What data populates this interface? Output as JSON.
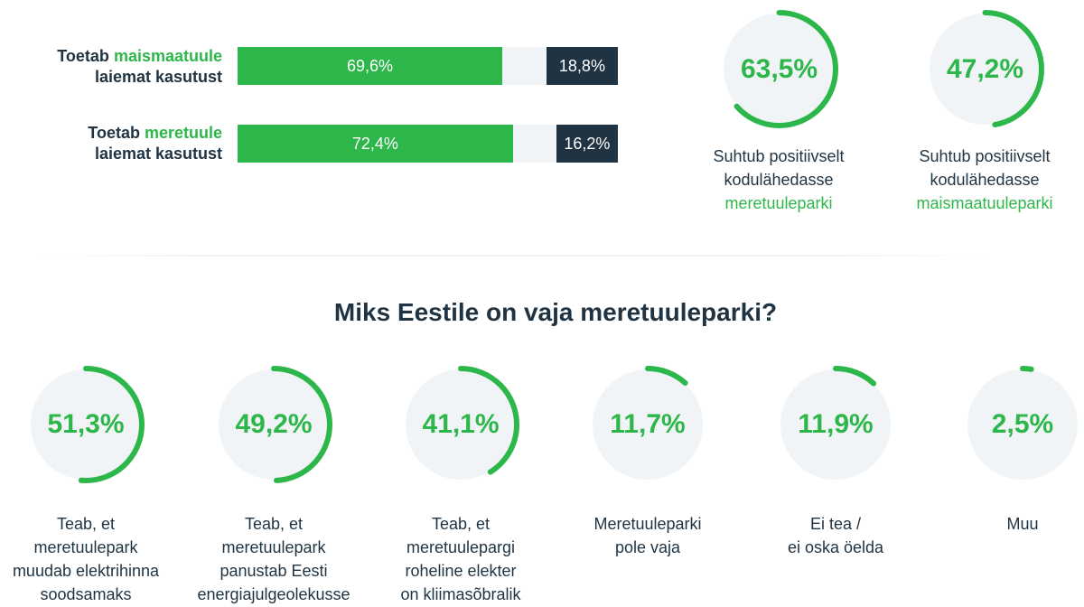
{
  "colors": {
    "accent": "#2db74b",
    "dark": "#1f3342",
    "track": "#f1f4f6"
  },
  "top_bars": [
    {
      "label_pre": "Toetab ",
      "label_hl": "maismaatuule",
      "label_post": "laiemat kasutust",
      "positive": 69.6,
      "negative": 18.8,
      "positive_label": "69,6%",
      "negative_label": "18,8%"
    },
    {
      "label_pre": "Toetab ",
      "label_hl": "meretuule",
      "label_post": "laiemat kasutust",
      "positive": 72.4,
      "negative": 16.2,
      "positive_label": "72,4%",
      "negative_label": "16,2%"
    }
  ],
  "top_rings": [
    {
      "value": 63.5,
      "value_label": "63,5%",
      "caption_1": "Suhtub positiivselt",
      "caption_2": "kodulähedasse",
      "caption_hl": "meretuuleparki"
    },
    {
      "value": 47.2,
      "value_label": "47,2%",
      "caption_1": "Suhtub positiivselt",
      "caption_2": "kodulähedasse",
      "caption_hl": "maismaatuuleparki"
    }
  ],
  "section_title": "Miks Eestile on vaja meretuuleparki?",
  "bottom_rings": [
    {
      "value": 51.3,
      "value_label": "51,3%",
      "caption": [
        "Teab, et",
        "meretuulepark",
        "muudab elektrihinna",
        "soodsamaks"
      ]
    },
    {
      "value": 49.2,
      "value_label": "49,2%",
      "caption": [
        "Teab, et",
        "meretuulepark",
        "panustab Eesti",
        "energiajulgeolekusse"
      ]
    },
    {
      "value": 41.1,
      "value_label": "41,1%",
      "caption": [
        "Teab, et",
        "meretuulepargi",
        "roheline elekter",
        "on kliimasõbralik"
      ]
    },
    {
      "value": 11.7,
      "value_label": "11,7%",
      "caption": [
        "Meretuuleparki",
        "pole vaja"
      ]
    },
    {
      "value": 11.9,
      "value_label": "11,9%",
      "caption": [
        "Ei tea /",
        "ei oska öelda"
      ]
    },
    {
      "value": 2.5,
      "value_label": "2,5%",
      "caption": [
        "Muu"
      ]
    }
  ],
  "chart_data": [
    {
      "type": "bar",
      "categories": [
        "Toetab maismaatuule laiemat kasutust",
        "Toetab meretuule laiemat kasutust"
      ],
      "series": [
        {
          "values": [
            69.6,
            72.4
          ]
        },
        {
          "values": [
            18.8,
            16.2
          ]
        }
      ]
    },
    {
      "type": "pie",
      "categories": [
        "Suhtub positiivselt kodulähedasse meretuuleparki",
        "Suhtub positiivselt kodulähedasse maismaatuuleparki"
      ],
      "values": [
        63.5,
        47.2
      ]
    },
    {
      "type": "pie",
      "title": "Miks Eestile on vaja meretuuleparki?",
      "categories": [
        "Teab, et meretuulepark muudab elektrihinna soodsamaks",
        "Teab, et meretuulepark panustab Eesti energiajulgeolekusse",
        "Teab, et meretuulepargi roheline elekter on kliimasõbralik",
        "Meretuuleparki pole vaja",
        "Ei tea / ei oska öelda",
        "Muu"
      ],
      "values": [
        51.3,
        49.2,
        41.1,
        11.7,
        11.9,
        2.5
      ]
    }
  ]
}
